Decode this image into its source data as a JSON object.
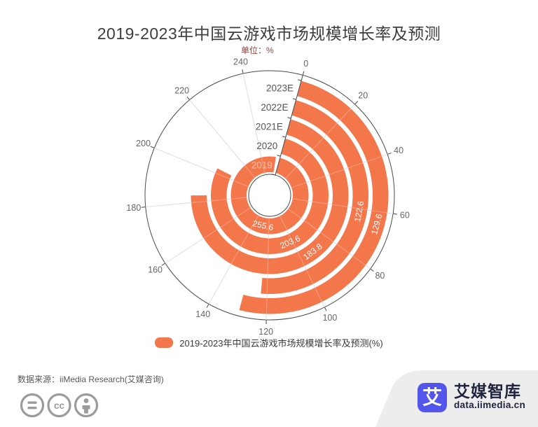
{
  "title": "2019-2023年中国云游戏市场规模增长率及预测",
  "unit_label": "单位：%",
  "chart_data": {
    "type": "bar",
    "subtype": "polar-radial-bar",
    "categories": [
      "2019",
      "2020",
      "2021E",
      "2022E",
      "2023E"
    ],
    "values": [
      255.6,
      203.6,
      183.8,
      122.6,
      129.6
    ],
    "series_name": "2019-2023年中国云游戏市场规模增长率及预测(%)",
    "angle_axis": {
      "min": 0,
      "max": 260,
      "interval": 20,
      "tick_labels": [
        "0",
        "20",
        "40",
        "60",
        "80",
        "100",
        "120",
        "140",
        "160",
        "180",
        "200",
        "220",
        "240"
      ],
      "start_offset_deg": 15.4,
      "clockwise": true
    },
    "value_labels": [
      "255.6",
      "203.6",
      "183.8",
      "122.6",
      "129.6"
    ],
    "label_position": "arc-middle",
    "grid": "spokes",
    "legend_position": "bottom"
  },
  "style": {
    "bar_color": "#f4764b",
    "spoke_color": "#ccd3ea",
    "axis_color": "#4a4a4a",
    "tick_label_color": "#666666",
    "category_label_color": "#555555",
    "first_category_label_color": "#f5c4ad",
    "value_label_color": "#ffffff",
    "icon_color": "#9b9b9b",
    "corner_shape_color": "#ededed"
  },
  "legend": {
    "label": "2019-2023年中国云游戏市场规模增长率及预测(%)",
    "swatch_color": "#f4764b"
  },
  "footer": {
    "source": "数据来源：iiMedia Research(艾媒咨询)",
    "icons": [
      "equals-icon",
      "cc-icon",
      "person-icon"
    ]
  },
  "brand": {
    "logo_char": "艾",
    "name": "艾媒智库",
    "site": "data.iimedia.cn",
    "logo_color": "#5356ec",
    "text_color": "#20243f"
  }
}
